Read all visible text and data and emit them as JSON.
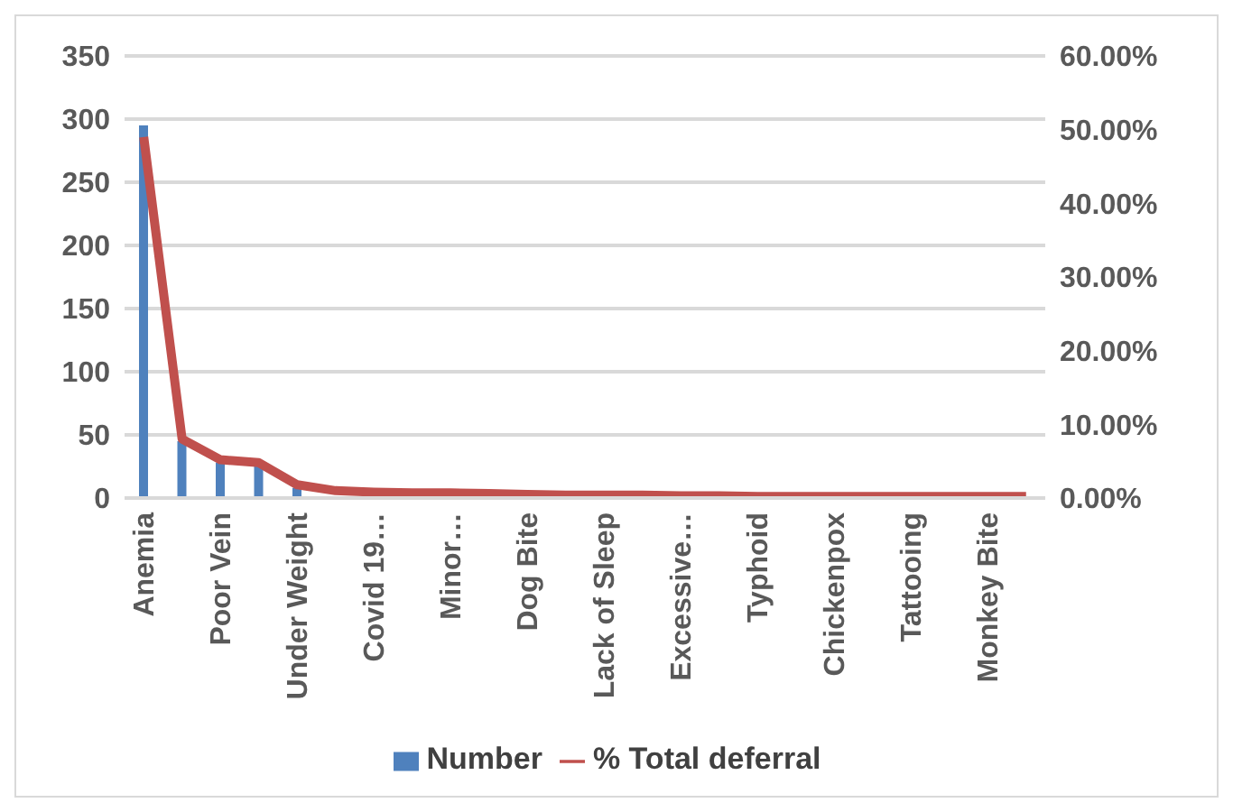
{
  "chart_data": {
    "type": "bar",
    "categories": [
      "Anemia",
      null,
      "Poor Vein",
      null,
      "Under Weight",
      null,
      "Covid 19…",
      null,
      "Minor…",
      null,
      "Dog Bite",
      null,
      "Lack of Sleep",
      null,
      "Excessive…",
      null,
      "Typhoid",
      null,
      "Chickenpox",
      null,
      "Tattooing",
      null,
      "Monkey Bite",
      null
    ],
    "series": [
      {
        "name": "Number",
        "color": "#4f81bd",
        "values": [
          295,
          45,
          28,
          27,
          8,
          null,
          null,
          null,
          null,
          null,
          null,
          null,
          null,
          null,
          null,
          null,
          null,
          null,
          null,
          null,
          null,
          null,
          null,
          null
        ]
      },
      {
        "name": "% Total deferral",
        "type": "line",
        "axis": "y2",
        "color": "#c0504d",
        "values": [
          49,
          8,
          5.2,
          4.8,
          1.8,
          1.0,
          0.8,
          0.7,
          0.7,
          0.6,
          0.5,
          0.4,
          0.4,
          0.4,
          0.3,
          0.3,
          0.2,
          0.2,
          0.2,
          0.2,
          0.2,
          0.2,
          0.2,
          0.2
        ]
      }
    ],
    "ylim": [
      0,
      350
    ],
    "yticks": [
      0,
      50,
      100,
      150,
      200,
      250,
      300,
      350
    ],
    "y2lim": [
      0,
      60
    ],
    "y2ticks": [
      {
        "value": 0,
        "label": "0.00%"
      },
      {
        "value": 10,
        "label": "10.00%"
      },
      {
        "value": 20,
        "label": "20.00%"
      },
      {
        "value": 30,
        "label": "30.00%"
      },
      {
        "value": 40,
        "label": "40.00%"
      },
      {
        "value": 50,
        "label": "50.00%"
      },
      {
        "value": 60,
        "label": "60.00%"
      }
    ],
    "grid": "y",
    "legend": "bottom",
    "marker": "none"
  }
}
